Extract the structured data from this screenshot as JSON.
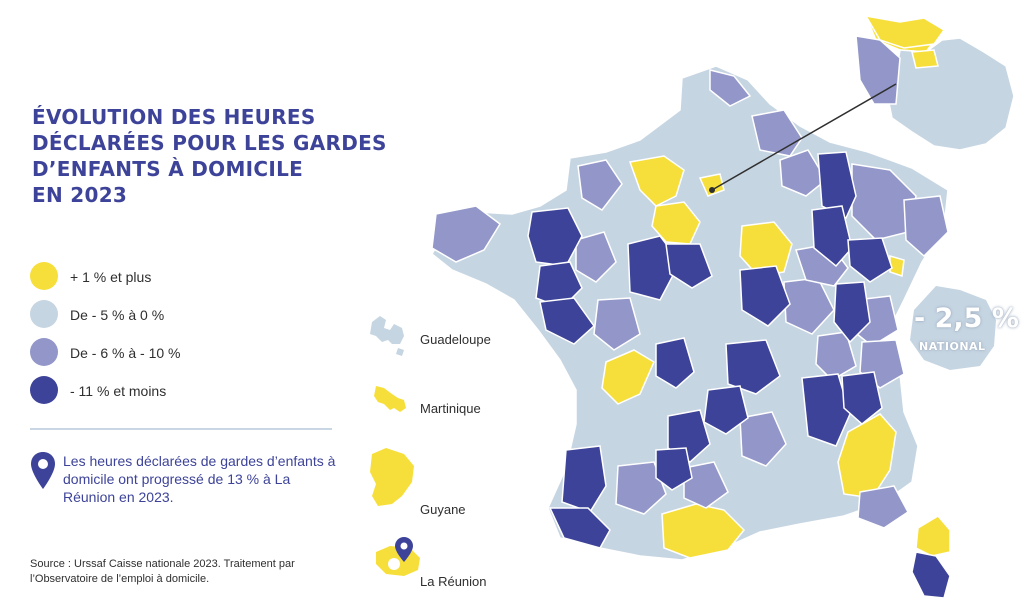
{
  "title": {
    "line1": "ÉVOLUTION DES HEURES",
    "line2": "DÉCLARÉES POUR LES GARDES",
    "line3": "D’ENFANTS À DOMICILE",
    "line4": "EN 2023"
  },
  "legend": [
    {
      "label": "+ 1 % et plus",
      "color": "#f7df3b"
    },
    {
      "label": "De - 5 % à 0 %",
      "color": "#c6d5e2"
    },
    {
      "label": "De - 6 % à - 10 %",
      "color": "#9296c8"
    },
    {
      "label": "- 11 % et moins",
      "color": "#3d4399"
    }
  ],
  "note": {
    "text": "Les heures déclarées de gardes d’enfants à domicile ont progressé de 13 % à La Réunion en 2023.",
    "icon": "location-pin-icon"
  },
  "source": "Source : Urssaf Caisse nationale 2023. Traitement par l’Observatoire de l’emploi à domicile.",
  "overseas": [
    {
      "name": "Guadeloupe",
      "category": "De - 5 % à 0 %"
    },
    {
      "name": "Martinique",
      "category": "+ 1 % et plus"
    },
    {
      "name": "Guyane",
      "category": "+ 1 % et plus"
    },
    {
      "name": "La Réunion",
      "category": "+ 1 % et plus"
    }
  ],
  "national": {
    "value": "- 2,5 %",
    "label": "NATIONAL"
  }
}
